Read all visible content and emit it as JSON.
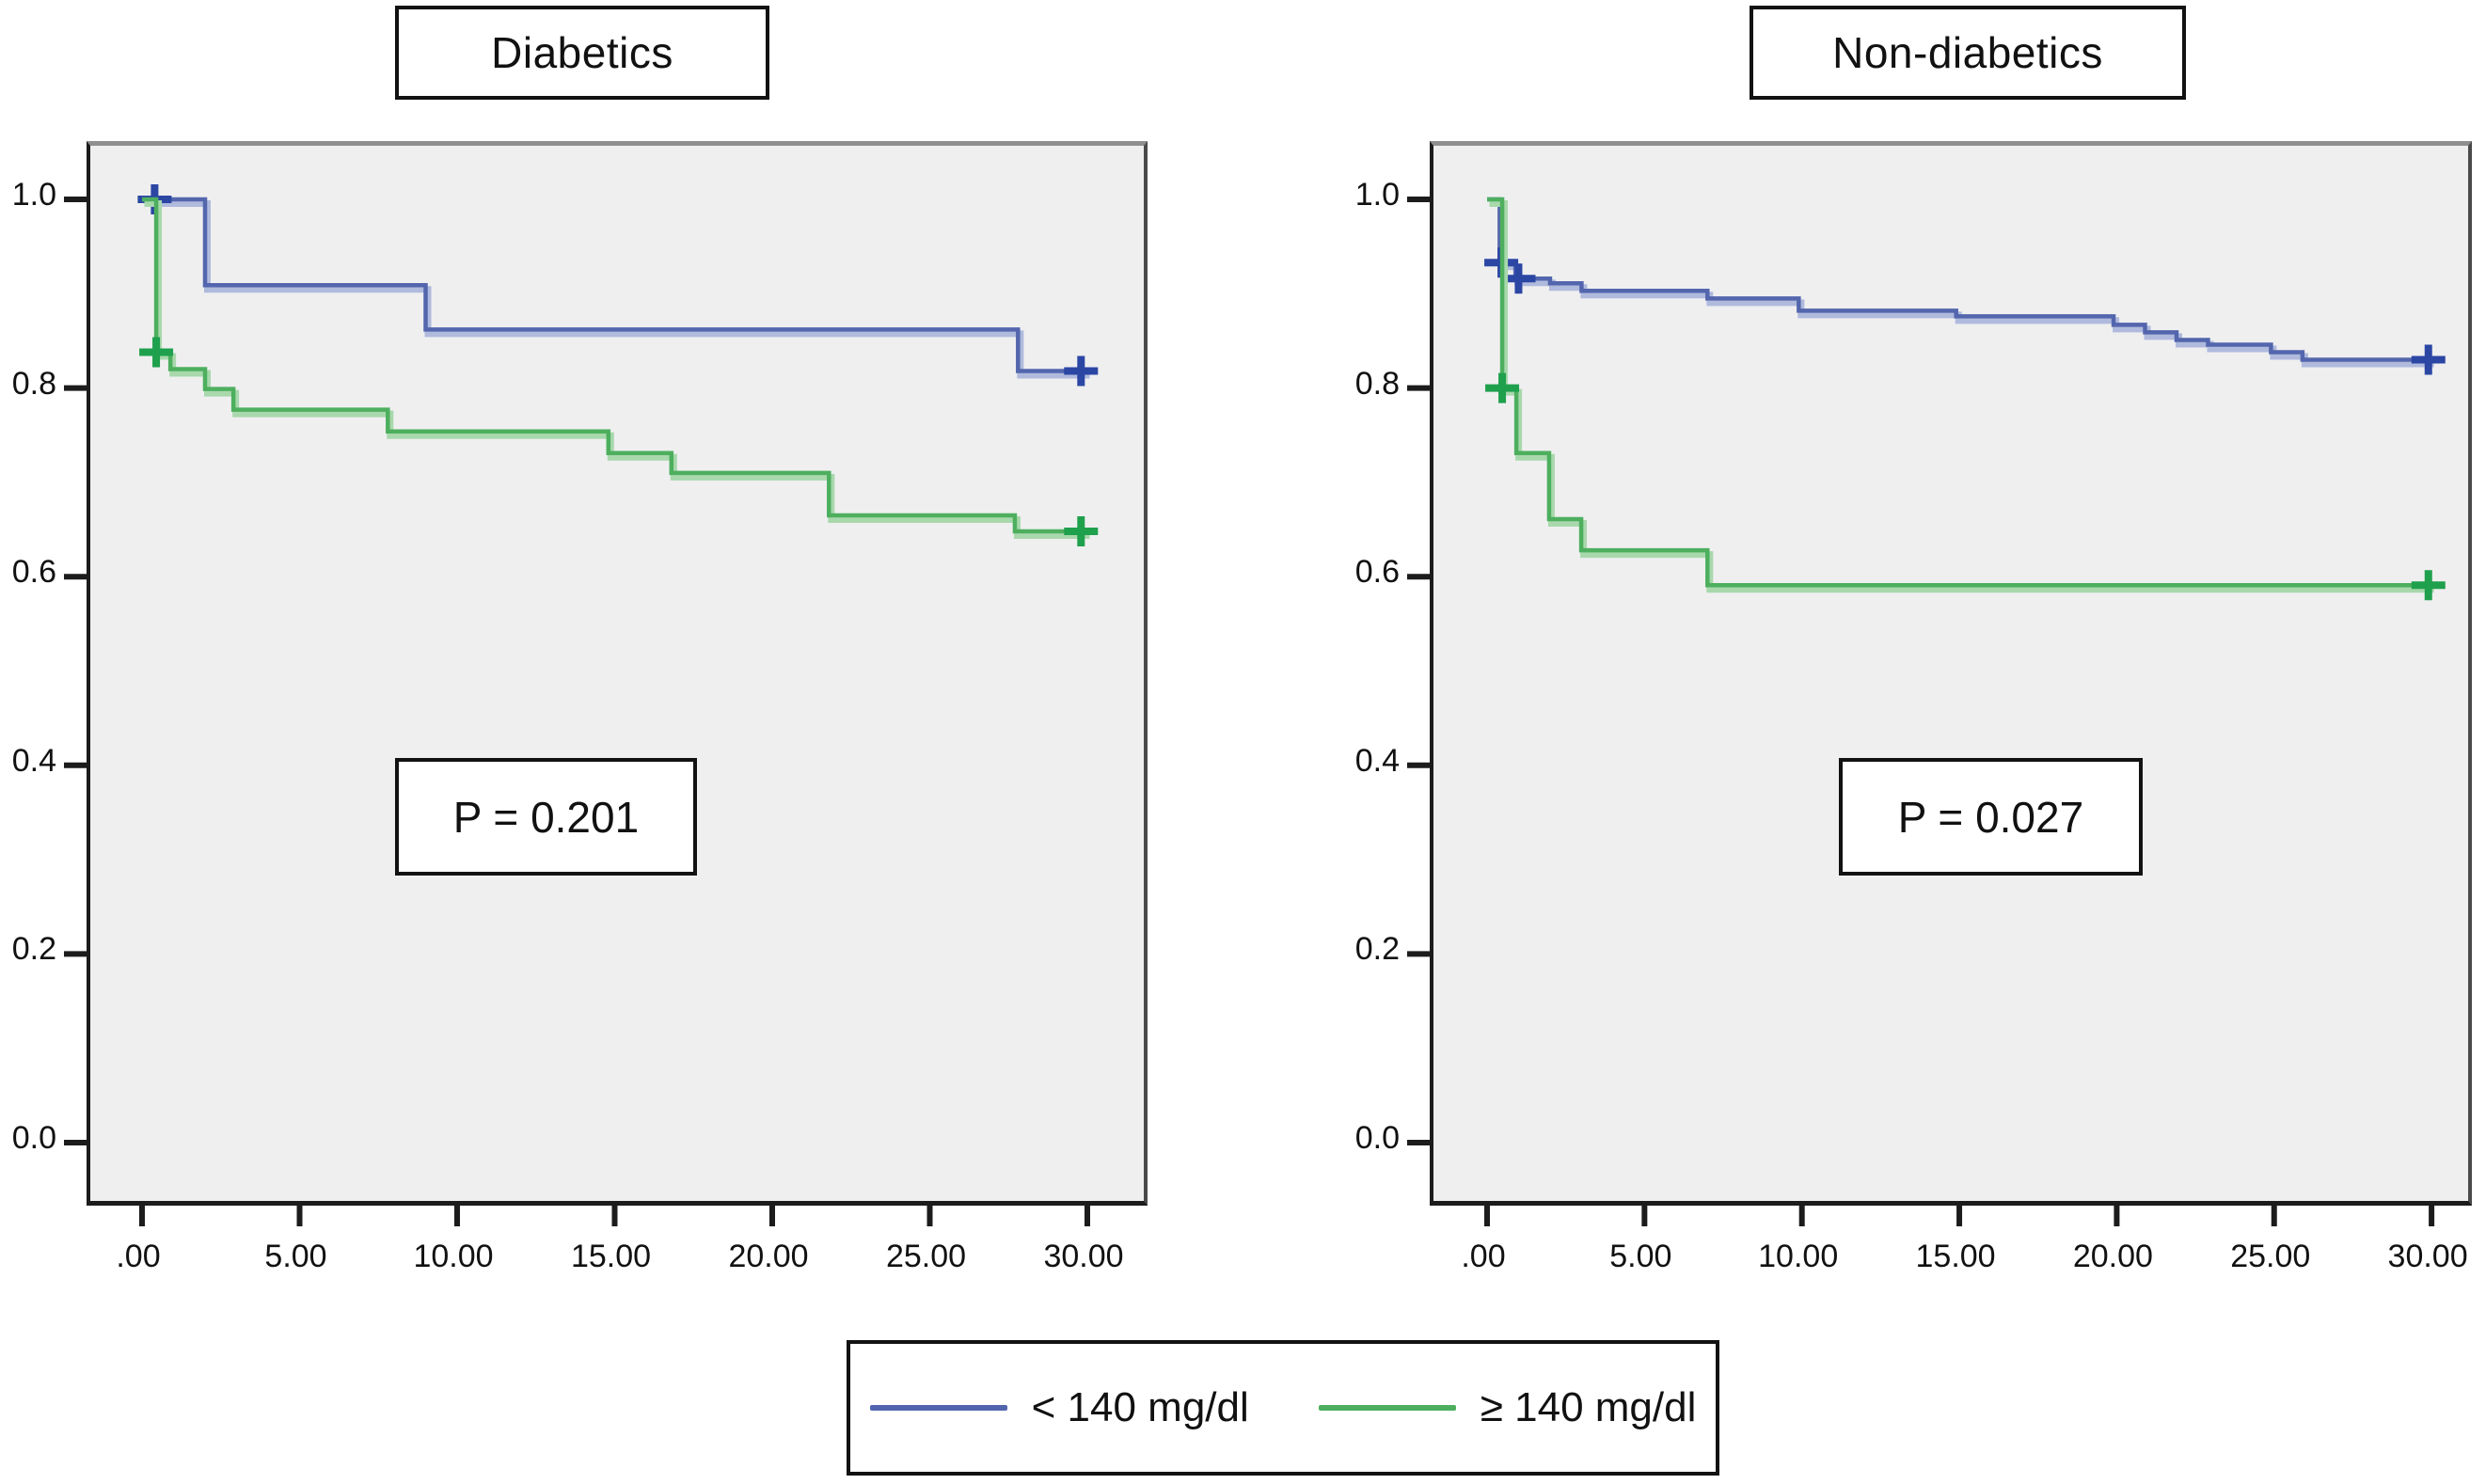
{
  "figure_background": "#ffffff",
  "plot_background": "#efeff0",
  "legend": {
    "items": [
      {
        "label": "< 140 mg/dl",
        "color": "#5366ad",
        "halo_color": "#afbadd",
        "censor_color": "#2b46a3"
      },
      {
        "label": "≥ 140 mg/dl",
        "color": "#4daf5e",
        "halo_color": "#a8d8ac",
        "censor_color": "#1fa04c"
      }
    ]
  },
  "chart_data": [
    {
      "type": "line",
      "subtype": "kaplan-meier-step",
      "title": "Diabetics",
      "p_value": "P = 0.201",
      "xlabel": "",
      "ylabel": "",
      "xlim": [
        0,
        30
      ],
      "ylim": [
        0,
        1
      ],
      "grid": "off",
      "x_tick_values": [
        0,
        5,
        10,
        15,
        20,
        25,
        30
      ],
      "x_tick_labels": [
        ".00",
        "5.00",
        "10.00",
        "15.00",
        "20.00",
        "25.00",
        "30.00"
      ],
      "y_tick_values": [
        1.0,
        0.8,
        0.6,
        0.4,
        0.2,
        0.0
      ],
      "y_tick_labels": [
        "1.0",
        "0.8",
        "0.6",
        "0.4",
        "0.2",
        "0.0"
      ],
      "series": [
        {
          "name": "< 140 mg/dl",
          "color": "#5366ad",
          "halo_color": "#afbadd",
          "censor_color": "#2b46a3",
          "steps": [
            [
              0,
              1.0
            ],
            [
              2.0,
              0.909
            ],
            [
              9.0,
              0.862
            ],
            [
              27.8,
              0.818
            ]
          ],
          "end_x": 30,
          "censors": [
            [
              0.4,
              1.0
            ],
            [
              29.8,
              0.818
            ]
          ]
        },
        {
          "name": "≥ 140 mg/dl",
          "color": "#4daf5e",
          "halo_color": "#a8d8ac",
          "censor_color": "#1fa04c",
          "steps": [
            [
              0,
              1.0
            ],
            [
              0.45,
              0.838
            ],
            [
              0.9,
              0.82
            ],
            [
              2.0,
              0.799
            ],
            [
              2.9,
              0.777
            ],
            [
              7.8,
              0.754
            ],
            [
              14.8,
              0.731
            ],
            [
              16.8,
              0.71
            ],
            [
              21.8,
              0.665
            ],
            [
              27.7,
              0.648
            ]
          ],
          "end_x": 30,
          "censors": [
            [
              0.45,
              0.838
            ],
            [
              29.8,
              0.648
            ]
          ]
        }
      ]
    },
    {
      "type": "line",
      "subtype": "kaplan-meier-step",
      "title": "Non-diabetics",
      "p_value": "P = 0.027",
      "xlabel": "",
      "ylabel": "",
      "xlim": [
        0,
        30
      ],
      "ylim": [
        0,
        1
      ],
      "grid": "off",
      "x_tick_values": [
        0,
        5,
        10,
        15,
        20,
        25,
        30
      ],
      "x_tick_labels": [
        ".00",
        "5.00",
        "10.00",
        "15.00",
        "20.00",
        "25.00",
        "30.00"
      ],
      "y_tick_values": [
        1.0,
        0.8,
        0.6,
        0.4,
        0.2,
        0.0
      ],
      "y_tick_labels": [
        "1.0",
        "0.8",
        "0.6",
        "0.4",
        "0.2",
        "0.0"
      ],
      "series": [
        {
          "name": "< 140 mg/dl",
          "color": "#5366ad",
          "halo_color": "#afbadd",
          "censor_color": "#2b46a3",
          "steps": [
            [
              0,
              1.0
            ],
            [
              0.4,
              0.933
            ],
            [
              0.9,
              0.916
            ],
            [
              2.0,
              0.911
            ],
            [
              3.0,
              0.903
            ],
            [
              7.0,
              0.895
            ],
            [
              9.9,
              0.882
            ],
            [
              14.9,
              0.876
            ],
            [
              19.9,
              0.867
            ],
            [
              20.9,
              0.859
            ],
            [
              21.9,
              0.851
            ],
            [
              22.9,
              0.846
            ],
            [
              24.9,
              0.838
            ],
            [
              25.9,
              0.83
            ]
          ],
          "end_x": 30,
          "censors": [
            [
              0.45,
              0.933
            ],
            [
              1.0,
              0.916
            ],
            [
              29.9,
              0.83
            ]
          ]
        },
        {
          "name": "≥ 140 mg/dl",
          "color": "#4daf5e",
          "halo_color": "#a8d8ac",
          "censor_color": "#1fa04c",
          "steps": [
            [
              0,
              1.0
            ],
            [
              0.48,
              0.8
            ],
            [
              0.93,
              0.731
            ],
            [
              1.97,
              0.661
            ],
            [
              2.99,
              0.628
            ],
            [
              7.0,
              0.591
            ]
          ],
          "end_x": 30,
          "censors": [
            [
              0.48,
              0.8
            ],
            [
              29.9,
              0.591
            ]
          ]
        }
      ]
    }
  ]
}
